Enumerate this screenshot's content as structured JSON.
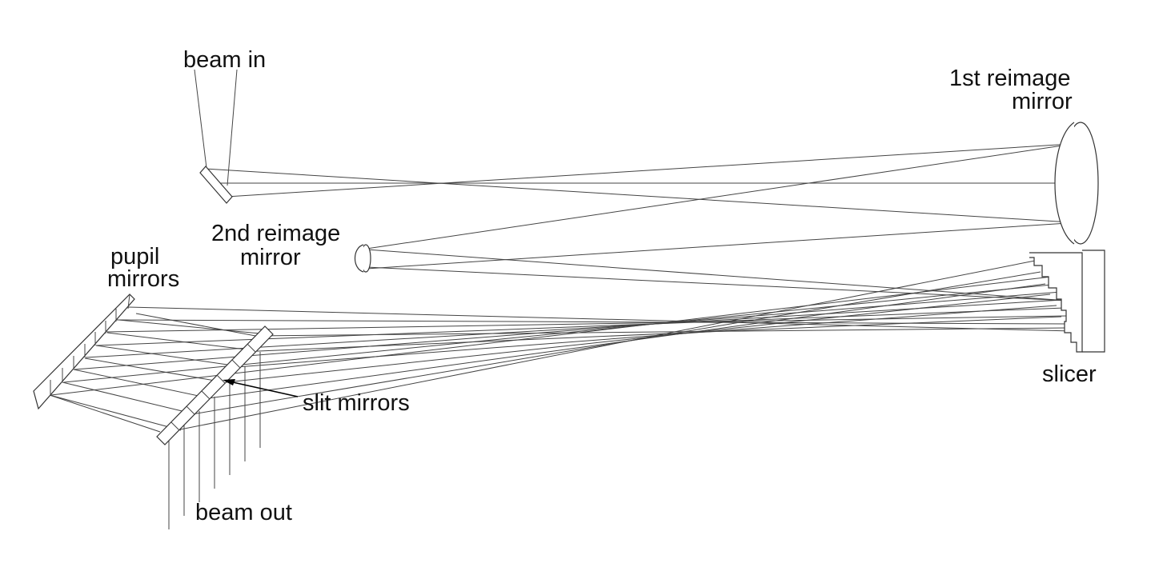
{
  "labels": {
    "beam_in": "beam in",
    "first_reimage_line1": "1st reimage",
    "first_reimage_line2": "mirror",
    "second_reimage_line1": "2nd reimage",
    "second_reimage_line2": "mirror",
    "pupil_line1": "pupil",
    "pupil_line2": "mirrors",
    "slicer": "slicer",
    "slit_mirrors": "slit mirrors",
    "beam_out": "beam out"
  },
  "colors": {
    "line": "#444444",
    "text": "#111111",
    "background": "#ffffff"
  }
}
